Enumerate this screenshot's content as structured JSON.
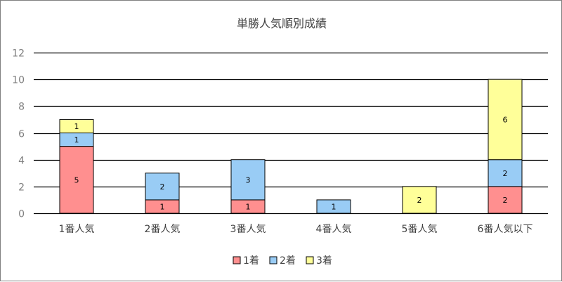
{
  "chart_data": {
    "type": "bar",
    "stacked": true,
    "title": "単勝人気順別成績",
    "categories": [
      "1番人気",
      "2番人気",
      "3番人気",
      "4番人気",
      "5番人気",
      "6番人気以下"
    ],
    "series": [
      {
        "name": "1着",
        "values": [
          5,
          1,
          1,
          0,
          0,
          2
        ],
        "color": "#ff8f8f"
      },
      {
        "name": "2着",
        "values": [
          1,
          2,
          3,
          1,
          0,
          2
        ],
        "color": "#99ccf5"
      },
      {
        "name": "3着",
        "values": [
          1,
          0,
          0,
          0,
          2,
          6
        ],
        "color": "#ffff99"
      }
    ],
    "ylim": [
      0,
      12
    ],
    "yticks": [
      0,
      2,
      4,
      6,
      8,
      10,
      12
    ],
    "grid": true,
    "legend_position": "bottom"
  }
}
